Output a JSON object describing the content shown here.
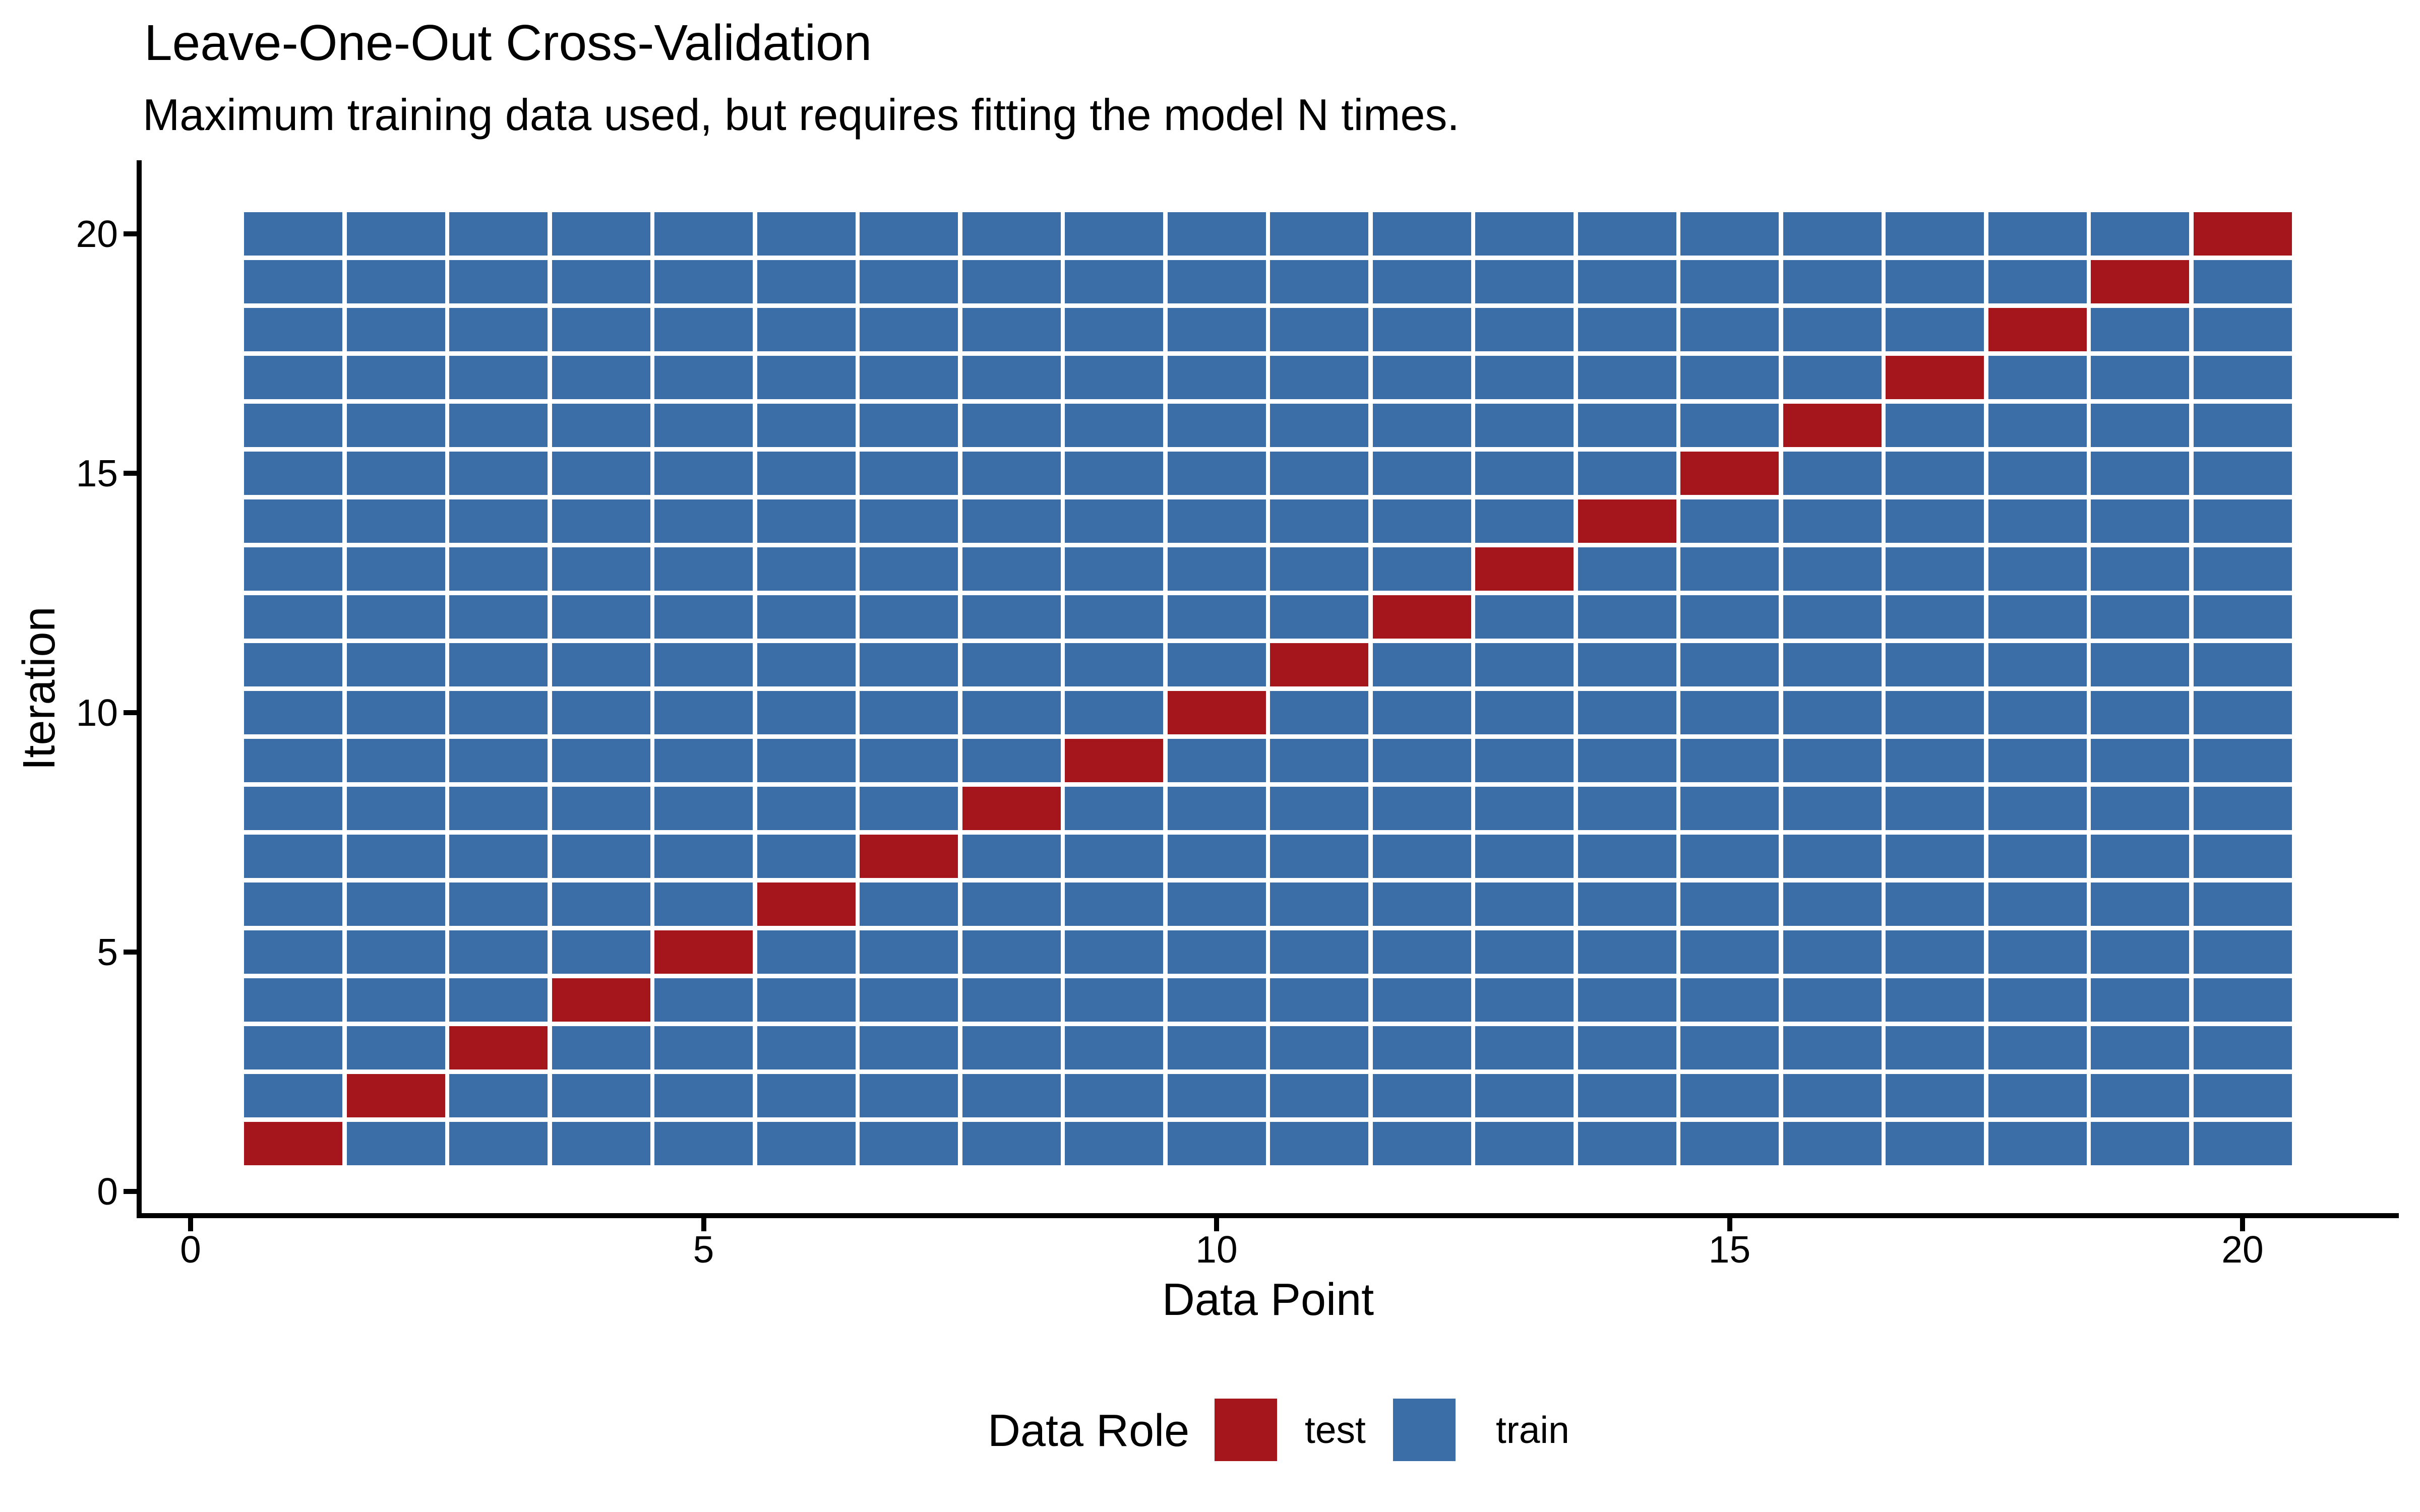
{
  "chart_data": {
    "type": "heatmap",
    "title": "Leave-One-Out Cross-Validation",
    "subtitle": "Maximum training data used, but requires fitting the model N times.",
    "xlabel": "Data Point",
    "ylabel": "Iteration",
    "n_iterations": 20,
    "n_data_points": 20,
    "iterations": [
      1,
      2,
      3,
      4,
      5,
      6,
      7,
      8,
      9,
      10,
      11,
      12,
      13,
      14,
      15,
      16,
      17,
      18,
      19,
      20
    ],
    "data_points": [
      1,
      2,
      3,
      4,
      5,
      6,
      7,
      8,
      9,
      10,
      11,
      12,
      13,
      14,
      15,
      16,
      17,
      18,
      19,
      20
    ],
    "test_data_point_by_iteration": [
      1,
      2,
      3,
      4,
      5,
      6,
      7,
      8,
      9,
      10,
      11,
      12,
      13,
      14,
      15,
      16,
      17,
      18,
      19,
      20
    ],
    "cell_rule": "cell(iteration, data_point) = test if data_point == iteration else train",
    "x_ticks": [
      0,
      5,
      10,
      15,
      20
    ],
    "y_ticks": [
      0,
      5,
      10,
      15,
      20
    ],
    "xlim": [
      -0.5,
      21.5
    ],
    "ylim": [
      -0.5,
      21.5
    ],
    "grid": "off",
    "colors": {
      "test": "#A4161B",
      "train": "#3B6EA6"
    },
    "legend": {
      "position": "bottom",
      "title": "Data Role",
      "items": [
        {
          "label": "test",
          "color": "#A4161B"
        },
        {
          "label": "train",
          "color": "#3B6EA6"
        }
      ]
    }
  }
}
